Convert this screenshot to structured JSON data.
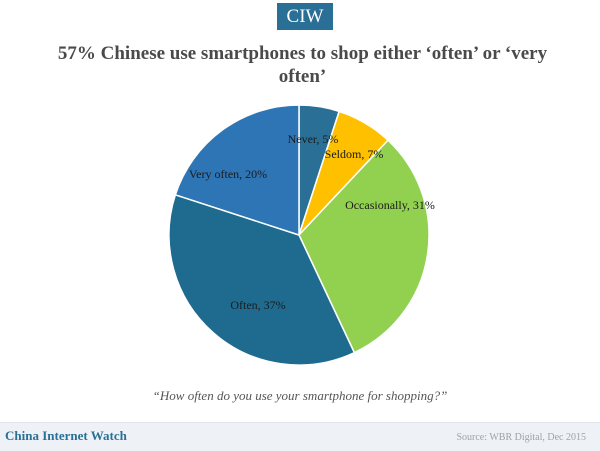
{
  "header": {
    "badge": "CIW"
  },
  "chart_data": {
    "type": "pie",
    "title": "57% Chinese use smartphones to shop either ‘often’ or ‘very often’",
    "categories": [
      "Never",
      "Seldom",
      "Occasionally",
      "Often",
      "Very often"
    ],
    "values": [
      5,
      7,
      31,
      37,
      20
    ],
    "unit": "%",
    "data_labels": [
      "Never, 5%",
      "Seldom, 7%",
      "Occasionally, 31%",
      "Often, 37%",
      "Very often, 20%"
    ],
    "colors": [
      "#2a7096",
      "#ffc000",
      "#92d050",
      "#1f6b8f",
      "#2e75b6"
    ],
    "start_angle_deg": 0,
    "direction": "clockwise"
  },
  "caption": {
    "question": "“How often do you use your smartphone for shopping?”"
  },
  "footer": {
    "brand": "China Internet Watch",
    "source": "Source: WBR Digital,  Dec 2015"
  }
}
